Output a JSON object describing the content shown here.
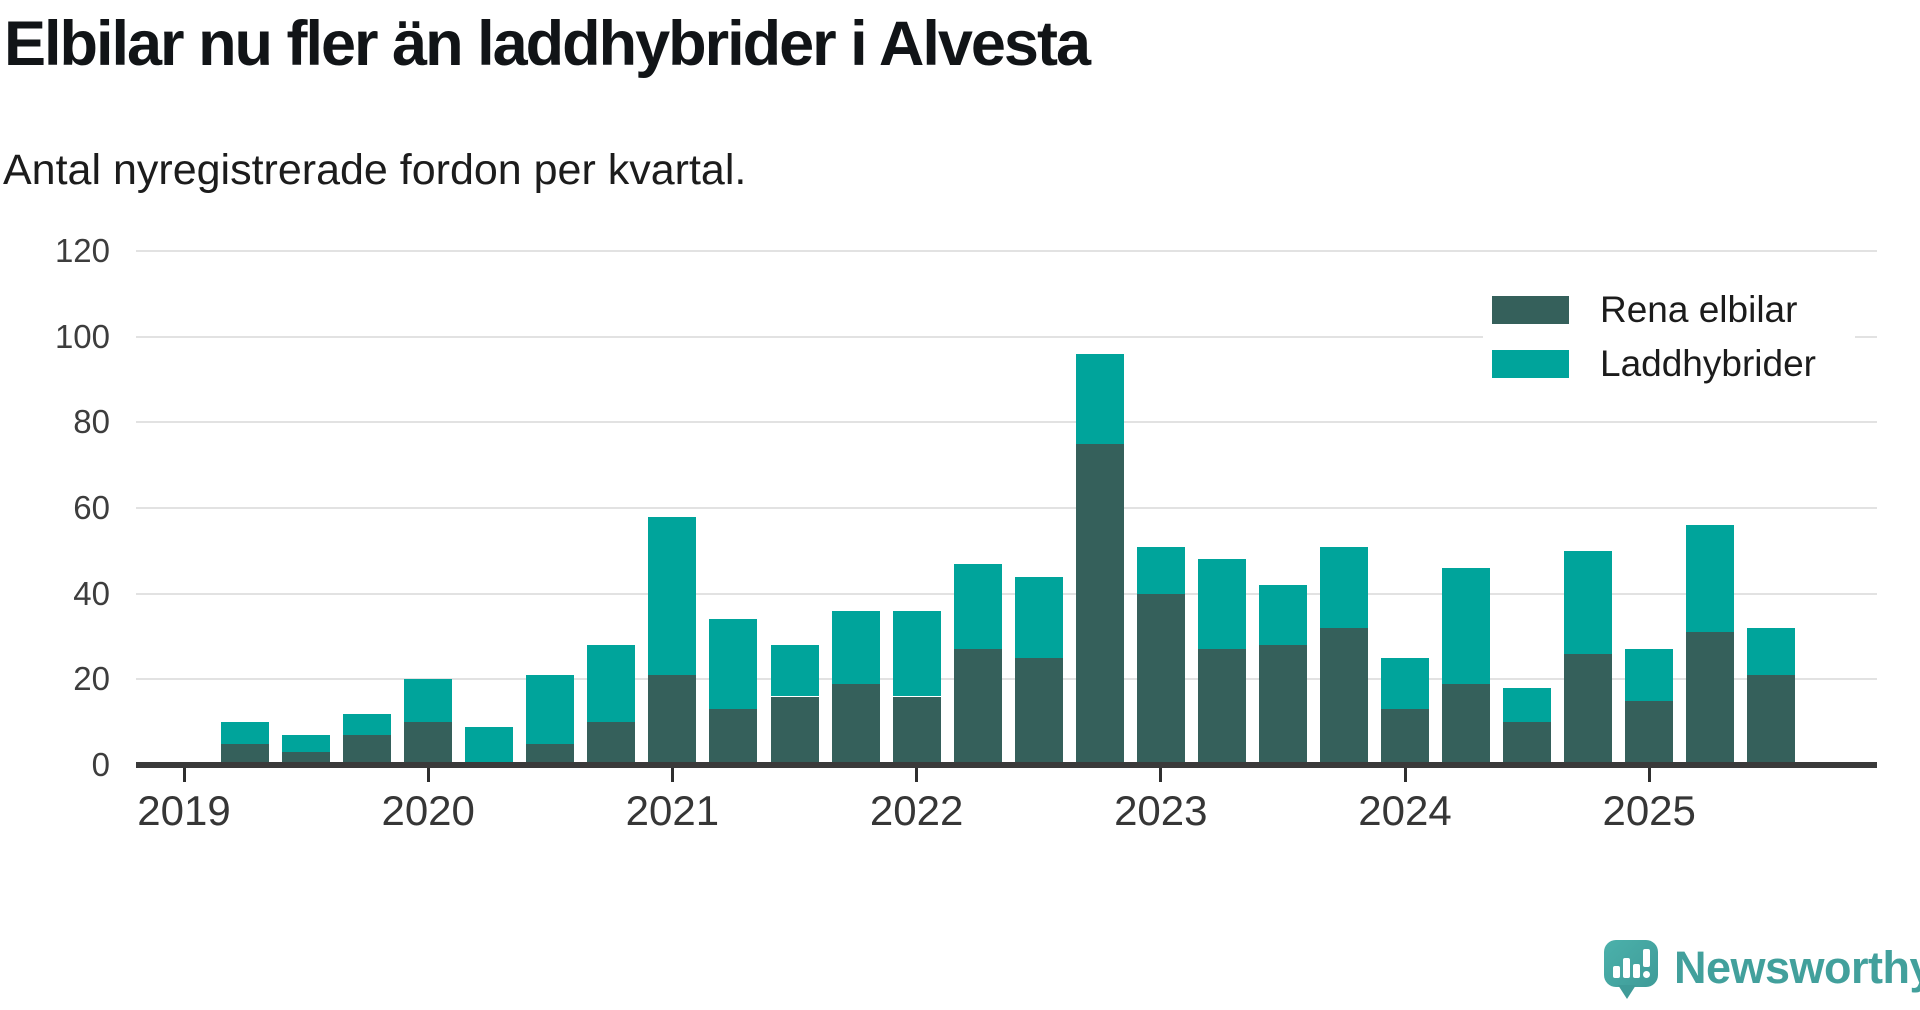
{
  "title": "Elbilar nu fler än laddhybrider i Alvesta",
  "subtitle": "Antal nyregistrerade fordon per kvartal.",
  "legend": {
    "items": [
      {
        "label": "Rena elbilar",
        "color": "#35605b"
      },
      {
        "label": "Laddhybrider",
        "color": "#00a49b"
      }
    ]
  },
  "branding": {
    "name": "Newsworthy"
  },
  "colors": {
    "rena_elbilar": "#35605b",
    "laddhybrider": "#00a49b",
    "gridline": "#e2e2e2",
    "axis": "#3a3a3a",
    "logo_teal": "#42a09c"
  },
  "chart_data": {
    "type": "bar",
    "stacked": true,
    "title": "Elbilar nu fler än laddhybrider i Alvesta",
    "subtitle": "Antal nyregistrerade fordon per kvartal.",
    "xlabel": "",
    "ylabel": "",
    "ylim": [
      0,
      120
    ],
    "yticks": [
      0,
      20,
      40,
      60,
      80,
      100,
      120
    ],
    "grid": true,
    "legend_position": "top-right",
    "x_tick_labels": [
      "2019",
      "2020",
      "2021",
      "2022",
      "2023",
      "2024",
      "2025"
    ],
    "categories": [
      "2019 Q2",
      "2019 Q3",
      "2019 Q4",
      "2020 Q1",
      "2020 Q2",
      "2020 Q3",
      "2020 Q4",
      "2021 Q1",
      "2021 Q2",
      "2021 Q3",
      "2021 Q4",
      "2022 Q1",
      "2022 Q2",
      "2022 Q3",
      "2022 Q4",
      "2023 Q1",
      "2023 Q2",
      "2023 Q3",
      "2023 Q4",
      "2024 Q1",
      "2024 Q2",
      "2024 Q3",
      "2024 Q4",
      "2025 Q1",
      "2025 Q2",
      "2025 Q3"
    ],
    "series": [
      {
        "name": "Rena elbilar",
        "color": "#35605b",
        "values": [
          5,
          3,
          7,
          10,
          0,
          5,
          10,
          21,
          13,
          16,
          19,
          16,
          27,
          25,
          75,
          40,
          27,
          28,
          32,
          13,
          19,
          10,
          26,
          15,
          31,
          21
        ]
      },
      {
        "name": "Laddhybrider",
        "color": "#00a49b",
        "values": [
          5,
          4,
          5,
          10,
          9,
          16,
          18,
          37,
          21,
          12,
          17,
          20,
          20,
          19,
          21,
          11,
          21,
          14,
          19,
          12,
          27,
          8,
          24,
          12,
          25,
          11
        ]
      }
    ],
    "totals": [
      10,
      7,
      12,
      20,
      9,
      21,
      28,
      58,
      34,
      28,
      36,
      36,
      47,
      44,
      96,
      51,
      48,
      42,
      51,
      25,
      46,
      18,
      50,
      27,
      56,
      32
    ]
  }
}
